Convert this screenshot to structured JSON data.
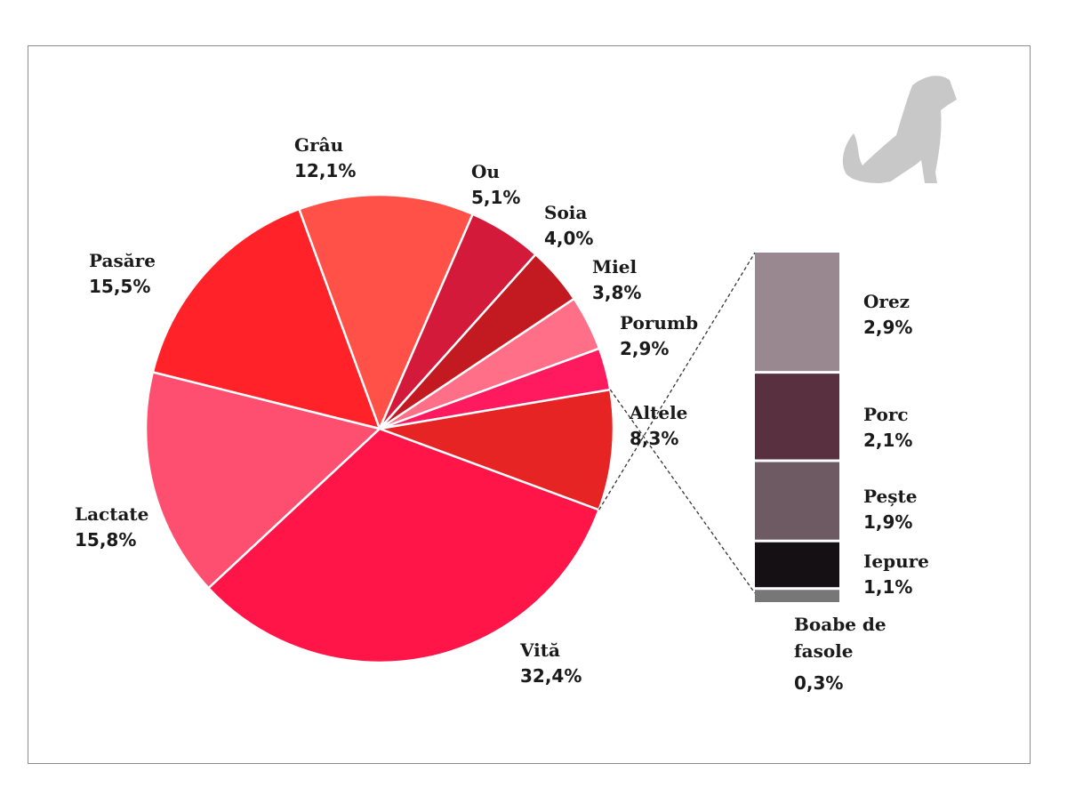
{
  "chart_data": [
    {
      "type": "pie",
      "slices": [
        {
          "label": "Vită",
          "value_label": "32,4%",
          "value": 32.4,
          "color": "#ff1547"
        },
        {
          "label": "Lactate",
          "value_label": "15,8%",
          "value": 15.8,
          "color": "#ff4f70"
        },
        {
          "label": "Pasăre",
          "value_label": "15,5%",
          "value": 15.5,
          "color": "#ff2228"
        },
        {
          "label": "Grâu",
          "value_label": "12,1%",
          "value": 12.1,
          "color": "#ff5147"
        },
        {
          "label": "Ou",
          "value_label": "5,1%",
          "value": 5.1,
          "color": "#d41a3a"
        },
        {
          "label": "Soia",
          "value_label": "4,0%",
          "value": 4.0,
          "color": "#c21a20"
        },
        {
          "label": "Miel",
          "value_label": "3,8%",
          "value": 3.8,
          "color": "#ff7088"
        },
        {
          "label": "Porumb",
          "value_label": "2,9%",
          "value": 2.9,
          "color": "#ff1a60"
        },
        {
          "label": "Altele",
          "value_label": "8,3%",
          "value": 8.3,
          "color": "#e62424"
        }
      ]
    },
    {
      "type": "bar",
      "stacked": true,
      "breakdown_of": "Altele",
      "segments": [
        {
          "label": "Orez",
          "value_label": "2,9%",
          "value": 2.9,
          "color": "#9a8890"
        },
        {
          "label": "Porc",
          "value_label": "2,1%",
          "value": 2.1,
          "color": "#583040"
        },
        {
          "label": "Pește",
          "value_label": "1,9%",
          "value": 1.9,
          "color": "#6e5a63"
        },
        {
          "label": "Iepure",
          "value_label": "1,1%",
          "value": 1.1,
          "color": "#141014"
        },
        {
          "label": "Boabe de fasole",
          "label_lines": [
            "Boabe de",
            "fasole"
          ],
          "value_label": "0,3%",
          "value": 0.3,
          "color": "#777777"
        }
      ]
    }
  ],
  "icon": {
    "name": "dog-icon",
    "color": "#c8c8c8"
  }
}
